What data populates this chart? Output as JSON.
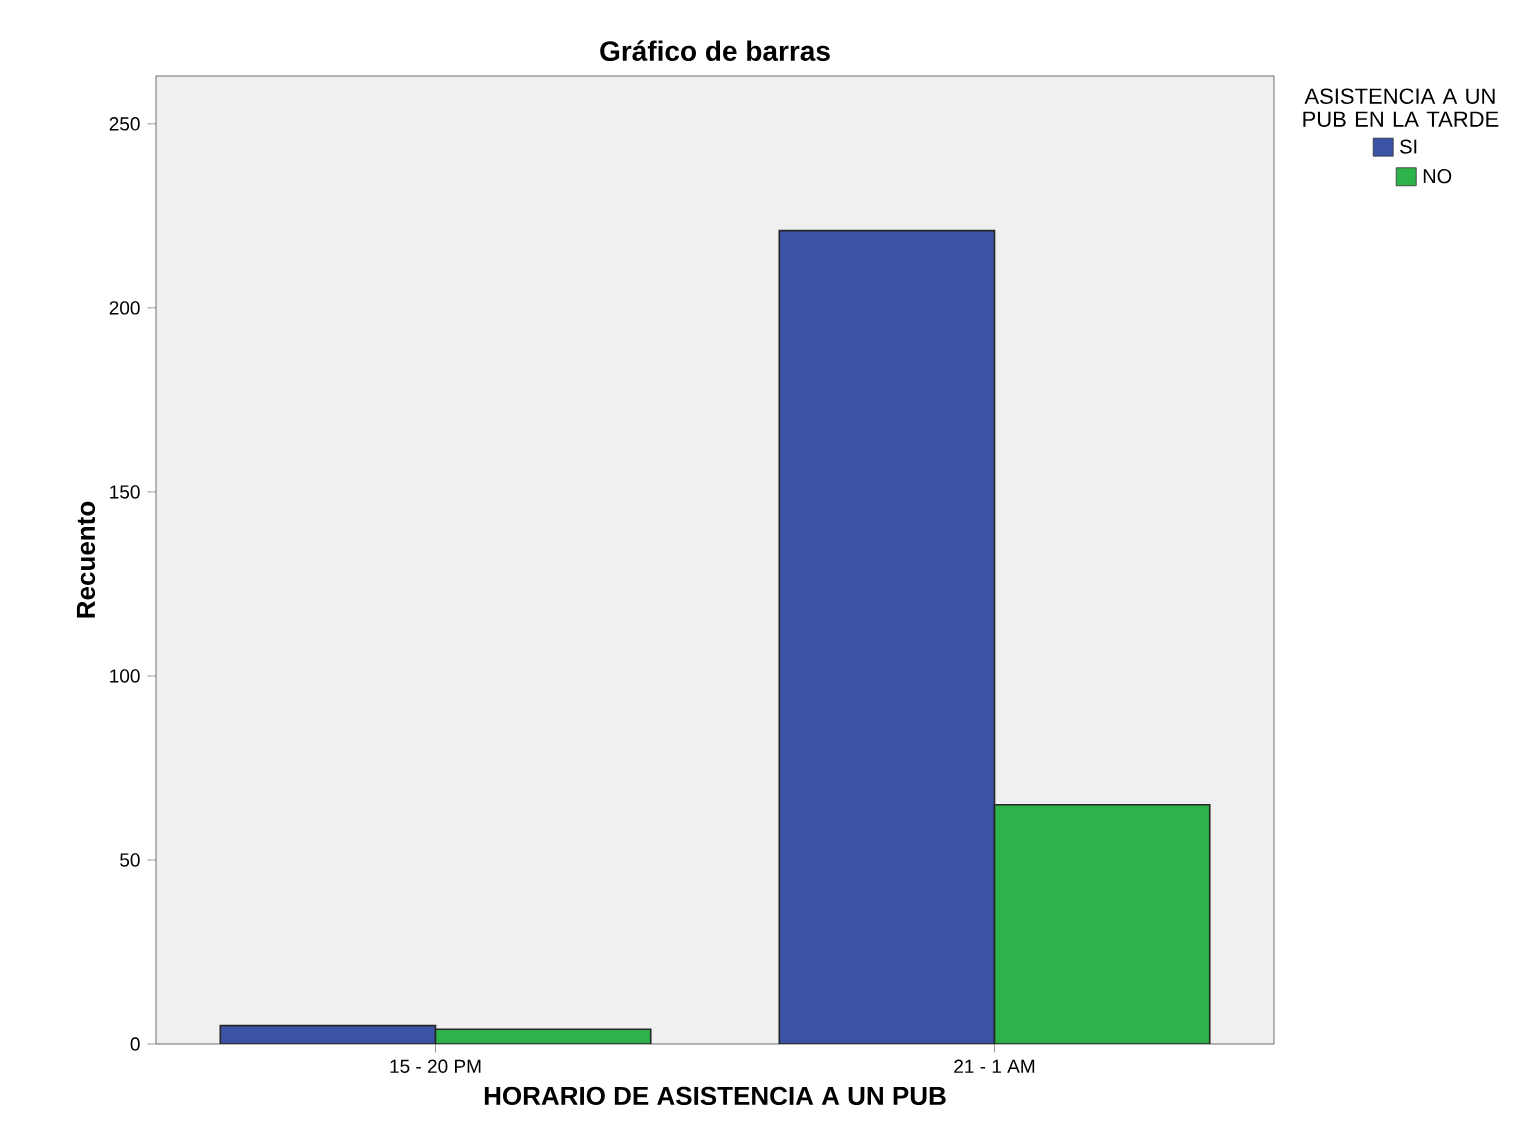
{
  "chart_data": {
    "type": "bar",
    "title": "Gráfico de barras",
    "xlabel": "HORARIO DE ASISTENCIA A UN PUB",
    "ylabel": "Recuento",
    "legend_title": "ASISTENCIA A UN PUB EN LA TARDE",
    "categories": [
      "15 - 20 PM",
      "21 - 1 AM"
    ],
    "series": [
      {
        "name": "SI",
        "color": "#3a53a4",
        "values": [
          5,
          221
        ]
      },
      {
        "name": "NO",
        "color": "#2db34a",
        "values": [
          4,
          65
        ]
      }
    ],
    "ylim": [
      0,
      263
    ],
    "yticks": [
      0,
      50,
      100,
      150,
      200,
      250
    ],
    "grid": false,
    "legend": "right"
  }
}
